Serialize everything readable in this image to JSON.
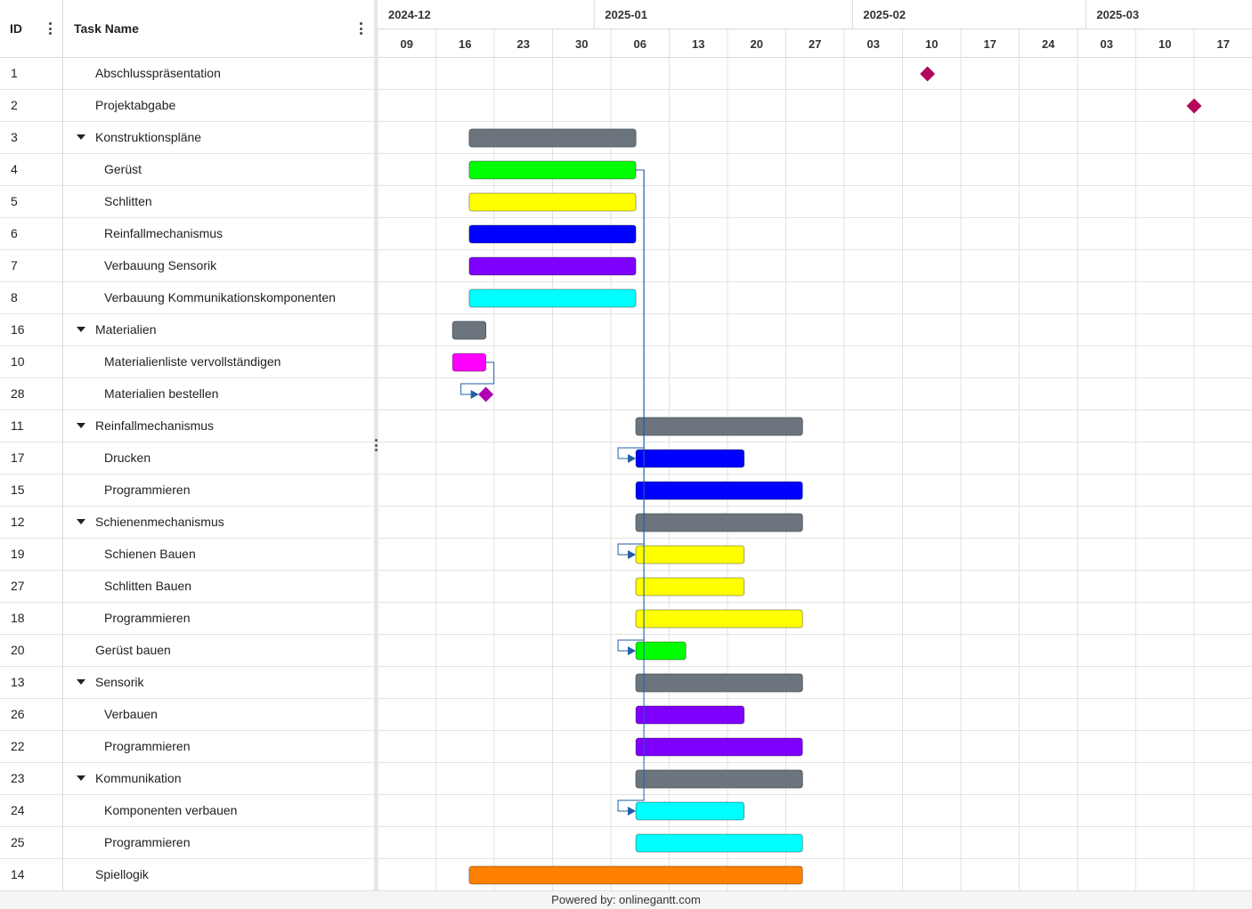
{
  "grid": {
    "id_header": "ID",
    "name_header": "Task Name"
  },
  "timeline": {
    "months": [
      "2024-12",
      "2025-01",
      "2025-02",
      "2025-03"
    ],
    "weeks": [
      "09",
      "16",
      "23",
      "30",
      "06",
      "13",
      "20",
      "27",
      "03",
      "10",
      "17",
      "24",
      "03",
      "10",
      "17"
    ]
  },
  "tasks": [
    {
      "id": "1",
      "name": "Abschlusspräsentation",
      "indent": 1,
      "type": "milestone",
      "date": "2025-02-10",
      "color": "#b2085a"
    },
    {
      "id": "2",
      "name": "Projektabgabe",
      "indent": 1,
      "type": "milestone",
      "date": "2025-03-14",
      "color": "#b2085a"
    },
    {
      "id": "3",
      "name": "Konstruktionspläne",
      "indent": 1,
      "type": "summary",
      "start": "2024-12-17",
      "end": "2025-01-06",
      "color": "#6c757d"
    },
    {
      "id": "4",
      "name": "Gerüst",
      "indent": 2,
      "type": "task",
      "start": "2024-12-17",
      "end": "2025-01-06",
      "color": "#00ff00"
    },
    {
      "id": "5",
      "name": "Schlitten",
      "indent": 2,
      "type": "task",
      "start": "2024-12-17",
      "end": "2025-01-06",
      "color": "#ffff00"
    },
    {
      "id": "6",
      "name": "Reinfallmechanismus",
      "indent": 2,
      "type": "task",
      "start": "2024-12-17",
      "end": "2025-01-06",
      "color": "#0000ff"
    },
    {
      "id": "7",
      "name": "Verbauung Sensorik",
      "indent": 2,
      "type": "task",
      "start": "2024-12-17",
      "end": "2025-01-06",
      "color": "#8000ff"
    },
    {
      "id": "8",
      "name": "Verbauung Kommunikationskomponenten",
      "indent": 2,
      "type": "task",
      "start": "2024-12-17",
      "end": "2025-01-06",
      "color": "#00ffff"
    },
    {
      "id": "16",
      "name": "Materialien",
      "indent": 1,
      "type": "summary",
      "start": "2024-12-15",
      "end": "2024-12-19",
      "color": "#6c757d"
    },
    {
      "id": "10",
      "name": "Materialienliste vervollständigen",
      "indent": 2,
      "type": "task",
      "start": "2024-12-15",
      "end": "2024-12-19",
      "color": "#ff00ff"
    },
    {
      "id": "28",
      "name": "Materialien bestellen",
      "indent": 2,
      "type": "milestone",
      "date": "2024-12-19",
      "color": "#b000b5"
    },
    {
      "id": "11",
      "name": "Reinfallmechanismus",
      "indent": 1,
      "type": "summary",
      "start": "2025-01-06",
      "end": "2025-01-26",
      "color": "#6c757d"
    },
    {
      "id": "17",
      "name": "Drucken",
      "indent": 2,
      "type": "task",
      "start": "2025-01-06",
      "end": "2025-01-19",
      "color": "#0000ff"
    },
    {
      "id": "15",
      "name": "Programmieren",
      "indent": 2,
      "type": "task",
      "start": "2025-01-06",
      "end": "2025-01-26",
      "color": "#0000ff"
    },
    {
      "id": "12",
      "name": "Schienenmechanismus",
      "indent": 1,
      "type": "summary",
      "start": "2025-01-06",
      "end": "2025-01-26",
      "color": "#6c757d"
    },
    {
      "id": "19",
      "name": "Schienen Bauen",
      "indent": 2,
      "type": "task",
      "start": "2025-01-06",
      "end": "2025-01-19",
      "color": "#ffff00"
    },
    {
      "id": "27",
      "name": "Schlitten Bauen",
      "indent": 2,
      "type": "task",
      "start": "2025-01-06",
      "end": "2025-01-19",
      "color": "#ffff00"
    },
    {
      "id": "18",
      "name": "Programmieren",
      "indent": 2,
      "type": "task",
      "start": "2025-01-06",
      "end": "2025-01-26",
      "color": "#ffff00"
    },
    {
      "id": "20",
      "name": "Gerüst bauen",
      "indent": 1,
      "type": "task",
      "start": "2025-01-06",
      "end": "2025-01-12",
      "color": "#00ff00"
    },
    {
      "id": "13",
      "name": "Sensorik",
      "indent": 1,
      "type": "summary",
      "start": "2025-01-06",
      "end": "2025-01-26",
      "color": "#6c757d"
    },
    {
      "id": "26",
      "name": "Verbauen",
      "indent": 2,
      "type": "task",
      "start": "2025-01-06",
      "end": "2025-01-19",
      "color": "#8000ff"
    },
    {
      "id": "22",
      "name": "Programmieren",
      "indent": 2,
      "type": "task",
      "start": "2025-01-06",
      "end": "2025-01-26",
      "color": "#8000ff"
    },
    {
      "id": "23",
      "name": "Kommunikation",
      "indent": 1,
      "type": "summary",
      "start": "2025-01-06",
      "end": "2025-01-26",
      "color": "#6c757d"
    },
    {
      "id": "24",
      "name": "Komponenten verbauen",
      "indent": 2,
      "type": "task",
      "start": "2025-01-06",
      "end": "2025-01-19",
      "color": "#00ffff"
    },
    {
      "id": "25",
      "name": "Programmieren",
      "indent": 2,
      "type": "task",
      "start": "2025-01-06",
      "end": "2025-01-26",
      "color": "#00ffff"
    },
    {
      "id": "14",
      "name": "Spiellogik",
      "indent": 1,
      "type": "task",
      "start": "2024-12-17",
      "end": "2025-01-26",
      "color": "#ff8000"
    }
  ],
  "dependencies": [
    {
      "from": "10",
      "to": "28"
    },
    {
      "from": "4",
      "to": "17"
    },
    {
      "from": "4",
      "to": "19"
    },
    {
      "from": "4",
      "to": "20"
    },
    {
      "from": "4",
      "to": "24"
    }
  ],
  "colors": {
    "link": "#1f5fa8",
    "grid_line": "#e2e2e2"
  },
  "footer": {
    "text": "Powered by: onlinegantt.com"
  }
}
